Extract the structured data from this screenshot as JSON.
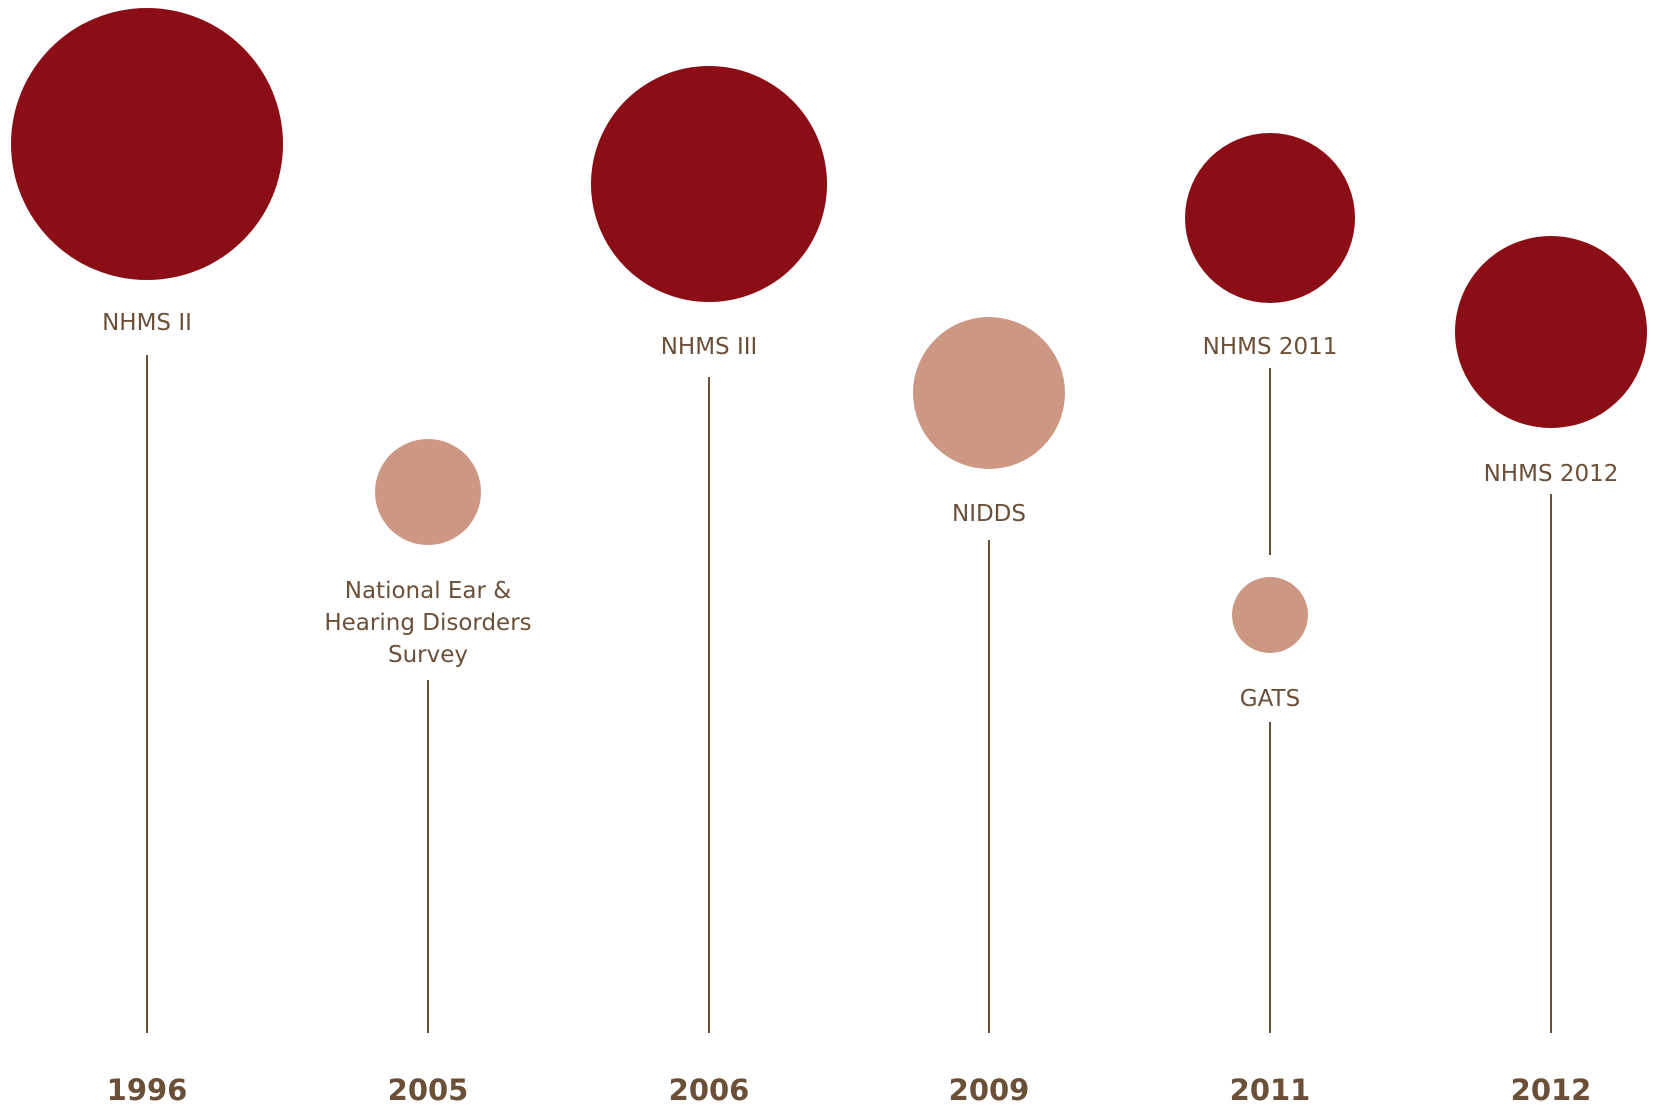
{
  "colors": {
    "major_bubble": "#8b0d15",
    "minor_bubble": "#cc9884",
    "text": "#6b5039",
    "stem": "#6b5039",
    "background": "#ffffff"
  },
  "years": [
    "1996",
    "2005",
    "2006",
    "2009",
    "2011",
    "2012"
  ],
  "surveys": [
    {
      "label_lines": [
        "NHMS II"
      ],
      "year": "1996",
      "kind": "major"
    },
    {
      "label_lines": [
        "National Ear &",
        "Hearing Disorders",
        "Survey"
      ],
      "year": "2005",
      "kind": "minor"
    },
    {
      "label_lines": [
        "NHMS III"
      ],
      "year": "2006",
      "kind": "major"
    },
    {
      "label_lines": [
        "NIDDS"
      ],
      "year": "2009",
      "kind": "minor"
    },
    {
      "label_lines": [
        "NHMS 2011"
      ],
      "year": "2011",
      "kind": "major"
    },
    {
      "label_lines": [
        "GATS"
      ],
      "year": "2011",
      "kind": "minor"
    },
    {
      "label_lines": [
        "NHMS 2012"
      ],
      "year": "2012",
      "kind": "major"
    }
  ]
}
